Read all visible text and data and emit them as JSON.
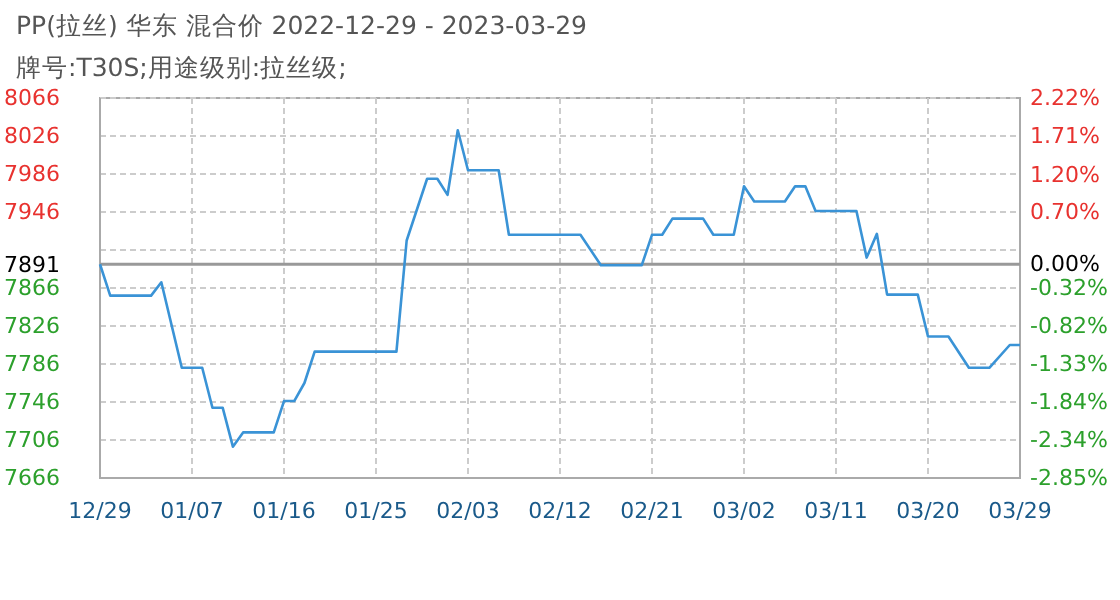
{
  "chart_data": {
    "type": "line",
    "title": "PP(拉丝) 华东 混合价 2022-12-29 - 2023-03-29",
    "subtitle": "牌号:T30S;用途级别:拉丝级;",
    "x": [
      "2022-12-29",
      "2022-12-30",
      "2023-01-03",
      "2023-01-04",
      "2023-01-06",
      "2023-01-08",
      "2023-01-09",
      "2023-01-10",
      "2023-01-11",
      "2023-01-12",
      "2023-01-15",
      "2023-01-16",
      "2023-01-17",
      "2023-01-18",
      "2023-01-19",
      "2023-01-27",
      "2023-01-28",
      "2023-01-30",
      "2023-01-31",
      "2023-02-01",
      "2023-02-02",
      "2023-02-03",
      "2023-02-06",
      "2023-02-07",
      "2023-02-14",
      "2023-02-16",
      "2023-02-20",
      "2023-02-21",
      "2023-02-22",
      "2023-02-23",
      "2023-02-26",
      "2023-02-27",
      "2023-03-01",
      "2023-03-02",
      "2023-03-03",
      "2023-03-06",
      "2023-03-07",
      "2023-03-08",
      "2023-03-09",
      "2023-03-13",
      "2023-03-14",
      "2023-03-15",
      "2023-03-16",
      "2023-03-19",
      "2023-03-20",
      "2023-03-21",
      "2023-03-22",
      "2023-03-24",
      "2023-03-26",
      "2023-03-28",
      "2023-03-29"
    ],
    "series": [
      {
        "color": "#3a93d6",
        "values": [
          7891,
          7858,
          7858,
          7872,
          7782,
          7782,
          7740,
          7740,
          7699,
          7714,
          7714,
          7747,
          7747,
          7766,
          7799,
          7799,
          7916,
          7981,
          7981,
          7964,
          8032,
          7990,
          7990,
          7922,
          7922,
          7890,
          7890,
          7922,
          7922,
          7939,
          7939,
          7922,
          7922,
          7973,
          7957,
          7957,
          7973,
          7973,
          7947,
          7947,
          7898,
          7923,
          7859,
          7859,
          7815,
          7815,
          7815,
          7782,
          7782,
          7806,
          7806
        ]
      }
    ],
    "xlim": [
      "2022-12-29",
      "2023-03-29"
    ],
    "xticks": [
      {
        "value": "2022-12-29",
        "label": "12/29"
      },
      {
        "value": "2023-01-07",
        "label": "01/07"
      },
      {
        "value": "2023-01-16",
        "label": "01/16"
      },
      {
        "value": "2023-01-25",
        "label": "01/25"
      },
      {
        "value": "2023-02-03",
        "label": "02/03"
      },
      {
        "value": "2023-02-12",
        "label": "02/12"
      },
      {
        "value": "2023-02-21",
        "label": "02/21"
      },
      {
        "value": "2023-03-02",
        "label": "03/02"
      },
      {
        "value": "2023-03-11",
        "label": "03/11"
      },
      {
        "value": "2023-03-20",
        "label": "03/20"
      },
      {
        "value": "2023-03-29",
        "label": "03/29"
      }
    ],
    "ylim": [
      7666,
      8066
    ],
    "yticks": [
      8066,
      8026,
      7986,
      7946,
      {
        "value": 7906,
        "label": null
      },
      7866,
      7826,
      7786,
      7746,
      7706,
      7666
    ],
    "y2lim": [
      -2.85,
      2.22
    ],
    "y2ticks": [
      {
        "value": 2.22,
        "label": "2.22%"
      },
      {
        "value": 1.71,
        "label": "1.71%"
      },
      {
        "value": 1.2,
        "label": "1.20%"
      },
      {
        "value": 0.7,
        "label": "0.70%"
      },
      {
        "value": 0,
        "label": "0.00%"
      },
      {
        "value": -0.32,
        "label": "-0.32%"
      },
      {
        "value": -0.82,
        "label": "-0.82%"
      },
      {
        "value": -1.33,
        "label": "-1.33%"
      },
      {
        "value": -1.84,
        "label": "-1.84%"
      },
      {
        "value": -2.34,
        "label": "-2.34%"
      },
      {
        "value": -2.85,
        "label": "-2.85%"
      }
    ],
    "ref_lines": [
      {
        "axis": "y",
        "value": 7891,
        "label": "7891",
        "color": "#999999"
      }
    ],
    "grid": true,
    "marker": "none",
    "line_style": "solid"
  }
}
